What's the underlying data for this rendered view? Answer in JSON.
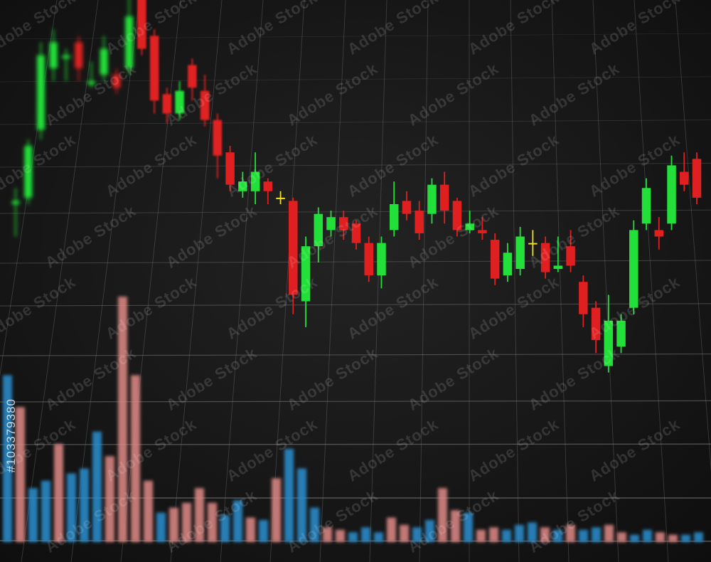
{
  "watermark": {
    "text": "Adobe Stock"
  },
  "stock_id": "#103379380",
  "colors": {
    "background": "#161616",
    "grid": "#8c8c8c",
    "bullish": "#22e039",
    "bearish": "#e02020",
    "doji": "#f0e020",
    "volume_up": "#2a8fd0",
    "volume_down": "#e08a86"
  },
  "candles": [
    {
      "o": 20,
      "c": 21,
      "h": 25,
      "l": 10
    },
    {
      "o": 22,
      "c": 38,
      "h": 40,
      "l": 20
    },
    {
      "o": 43,
      "c": 66,
      "h": 70,
      "l": 40
    },
    {
      "o": 62,
      "c": 70,
      "h": 74,
      "l": 58
    },
    {
      "o": 65,
      "c": 66,
      "h": 68,
      "l": 58
    },
    {
      "o": 70,
      "c": 62,
      "h": 72,
      "l": 58
    },
    {
      "o": 57,
      "c": 58,
      "h": 64,
      "l": 56
    },
    {
      "o": 60,
      "c": 68,
      "h": 72,
      "l": 58
    },
    {
      "o": 60,
      "c": 56,
      "h": 62,
      "l": 54
    },
    {
      "o": 62,
      "c": 78,
      "h": 84,
      "l": 60
    },
    {
      "o": 86,
      "c": 68,
      "h": 90,
      "l": 66
    },
    {
      "o": 72,
      "c": 52,
      "h": 74,
      "l": 48
    },
    {
      "o": 54,
      "c": 48,
      "h": 56,
      "l": 45
    },
    {
      "o": 48,
      "c": 55,
      "h": 58,
      "l": 46
    },
    {
      "o": 63,
      "c": 56,
      "h": 65,
      "l": 52
    },
    {
      "o": 55,
      "c": 46,
      "h": 60,
      "l": 44
    },
    {
      "o": 46,
      "c": 35,
      "h": 48,
      "l": 28
    },
    {
      "o": 36,
      "c": 26,
      "h": 38,
      "l": 24
    },
    {
      "o": 24,
      "c": 27,
      "h": 30,
      "l": 22
    },
    {
      "o": 24,
      "c": 30,
      "h": 36,
      "l": 20
    },
    {
      "o": 27,
      "c": 24,
      "h": 28,
      "l": 20
    },
    {
      "o": 22,
      "c": 22,
      "h": 24,
      "l": 20
    },
    {
      "o": 21,
      "c": -8,
      "h": 22,
      "l": -14
    },
    {
      "o": -10,
      "c": 7,
      "h": 10,
      "l": -18
    },
    {
      "o": 7,
      "c": 17,
      "h": 19,
      "l": 2
    },
    {
      "o": 12,
      "c": 16,
      "h": 18,
      "l": 10
    },
    {
      "o": 16,
      "c": 12,
      "h": 18,
      "l": 9
    },
    {
      "o": 14,
      "c": 8,
      "h": 15,
      "l": 6
    },
    {
      "o": 8,
      "c": -2,
      "h": 10,
      "l": -4
    },
    {
      "o": -2,
      "c": 8,
      "h": 10,
      "l": -6
    },
    {
      "o": 12,
      "c": 20,
      "h": 27,
      "l": 10
    },
    {
      "o": 21,
      "c": 17,
      "h": 24,
      "l": 15
    },
    {
      "o": 18,
      "c": 11,
      "h": 21,
      "l": 9
    },
    {
      "o": 17,
      "c": 26,
      "h": 28,
      "l": 14
    },
    {
      "o": 26,
      "c": 18,
      "h": 30,
      "l": 14
    },
    {
      "o": 21,
      "c": 12,
      "h": 22,
      "l": 10
    },
    {
      "o": 12,
      "c": 14,
      "h": 18,
      "l": 11
    },
    {
      "o": 12,
      "c": 11,
      "h": 16,
      "l": 9
    },
    {
      "o": 9,
      "c": -3,
      "h": 11,
      "l": -5
    },
    {
      "o": -2,
      "c": 5,
      "h": 8,
      "l": -4
    },
    {
      "o": 0,
      "c": 10,
      "h": 13,
      "l": -2
    },
    {
      "o": 8,
      "c": 8,
      "h": 12,
      "l": 4
    },
    {
      "o": 8,
      "c": -1,
      "h": 10,
      "l": -3
    },
    {
      "o": 0,
      "c": 1,
      "h": 10,
      "l": -1
    },
    {
      "o": 7,
      "c": 1,
      "h": 12,
      "l": -1
    },
    {
      "o": -4,
      "c": -14,
      "h": -2,
      "l": -18
    },
    {
      "o": -12,
      "c": -22,
      "h": -10,
      "l": -26
    },
    {
      "o": -30,
      "c": -16,
      "h": -8,
      "l": -32
    },
    {
      "o": -24,
      "c": -16,
      "h": -14,
      "l": -26
    },
    {
      "o": -12,
      "c": 12,
      "h": 15,
      "l": -14
    },
    {
      "o": 14,
      "c": 25,
      "h": 28,
      "l": 12
    },
    {
      "o": 12,
      "c": 10,
      "h": 16,
      "l": 6
    },
    {
      "o": 14,
      "c": 32,
      "h": 35,
      "l": 12
    },
    {
      "o": 30,
      "c": 26,
      "h": 36,
      "l": 24
    },
    {
      "o": 34,
      "c": 22,
      "h": 36,
      "l": 20
    }
  ],
  "volume": [
    {
      "v": 68,
      "d": "up"
    },
    {
      "v": 55,
      "d": "down"
    },
    {
      "v": 22,
      "d": "up"
    },
    {
      "v": 25,
      "d": "up"
    },
    {
      "v": 40,
      "d": "down"
    },
    {
      "v": 28,
      "d": "up"
    },
    {
      "v": 30,
      "d": "up"
    },
    {
      "v": 45,
      "d": "up"
    },
    {
      "v": 35,
      "d": "down"
    },
    {
      "v": 100,
      "d": "down"
    },
    {
      "v": 68,
      "d": "down"
    },
    {
      "v": 25,
      "d": "down"
    },
    {
      "v": 12,
      "d": "up"
    },
    {
      "v": 14,
      "d": "down"
    },
    {
      "v": 16,
      "d": "down"
    },
    {
      "v": 22,
      "d": "down"
    },
    {
      "v": 16,
      "d": "down"
    },
    {
      "v": 11,
      "d": "up"
    },
    {
      "v": 17,
      "d": "up"
    },
    {
      "v": 10,
      "d": "down"
    },
    {
      "v": 9,
      "d": "up"
    },
    {
      "v": 26,
      "d": "down"
    },
    {
      "v": 38,
      "d": "up"
    },
    {
      "v": 30,
      "d": "up"
    },
    {
      "v": 14,
      "d": "up"
    },
    {
      "v": 6,
      "d": "down"
    },
    {
      "v": 5,
      "d": "down"
    },
    {
      "v": 4,
      "d": "up"
    },
    {
      "v": 6,
      "d": "up"
    },
    {
      "v": 4,
      "d": "up"
    },
    {
      "v": 10,
      "d": "down"
    },
    {
      "v": 7,
      "d": "down"
    },
    {
      "v": 6,
      "d": "up"
    },
    {
      "v": 9,
      "d": "up"
    },
    {
      "v": 22,
      "d": "down"
    },
    {
      "v": 13,
      "d": "down"
    },
    {
      "v": 12,
      "d": "up"
    },
    {
      "v": 5,
      "d": "down"
    },
    {
      "v": 6,
      "d": "down"
    },
    {
      "v": 5,
      "d": "up"
    },
    {
      "v": 7,
      "d": "up"
    },
    {
      "v": 8,
      "d": "up"
    },
    {
      "v": 6,
      "d": "down"
    },
    {
      "v": 5,
      "d": "up"
    },
    {
      "v": 7,
      "d": "down"
    },
    {
      "v": 5,
      "d": "up"
    },
    {
      "v": 6,
      "d": "up"
    },
    {
      "v": 7,
      "d": "down"
    },
    {
      "v": 4,
      "d": "down"
    },
    {
      "v": 3,
      "d": "up"
    },
    {
      "v": 5,
      "d": "up"
    },
    {
      "v": 4,
      "d": "down"
    },
    {
      "v": 3,
      "d": "down"
    },
    {
      "v": 3,
      "d": "up"
    },
    {
      "v": 4,
      "d": "up"
    }
  ]
}
